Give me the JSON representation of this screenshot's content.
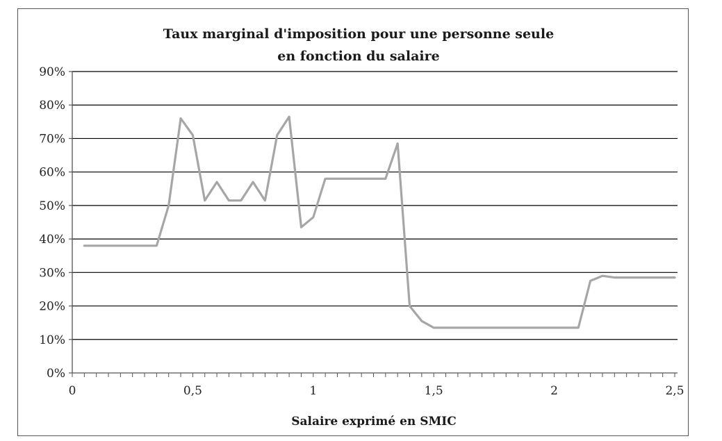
{
  "chart_data": {
    "type": "line",
    "title": "Taux marginal d'imposition pour une personne seule",
    "subtitle": "en fonction du salaire",
    "xlabel": "Salaire exprimé en SMIC",
    "ylabel": "",
    "xlim": [
      0,
      2.5
    ],
    "ylim": [
      0,
      90
    ],
    "x_ticks": [
      {
        "value": 0,
        "label": "0"
      },
      {
        "value": 0.5,
        "label": "0,5"
      },
      {
        "value": 1,
        "label": "1"
      },
      {
        "value": 1.5,
        "label": "1,5"
      },
      {
        "value": 2,
        "label": "2"
      },
      {
        "value": 2.5,
        "label": "2,5"
      }
    ],
    "x_minor_step": 0.05,
    "y_ticks": [
      {
        "value": 0,
        "label": "0%"
      },
      {
        "value": 10,
        "label": "10%"
      },
      {
        "value": 20,
        "label": "20%"
      },
      {
        "value": 30,
        "label": "30%"
      },
      {
        "value": 40,
        "label": "40%"
      },
      {
        "value": 50,
        "label": "50%"
      },
      {
        "value": 60,
        "label": "60%"
      },
      {
        "value": 70,
        "label": "70%"
      },
      {
        "value": 80,
        "label": "80%"
      },
      {
        "value": 90,
        "label": "90%"
      }
    ],
    "grid": true,
    "legend": "none",
    "colors": {
      "line": "#a6a6a6",
      "grid": "#000000",
      "axis": "#555555"
    },
    "series": [
      {
        "x": [
          0.05,
          0.1,
          0.15,
          0.2,
          0.25,
          0.3,
          0.35,
          0.4,
          0.45,
          0.5,
          0.55,
          0.6,
          0.65,
          0.7,
          0.75,
          0.8,
          0.85,
          0.9,
          0.95,
          1.0,
          1.05,
          1.1,
          1.15,
          1.2,
          1.25,
          1.3,
          1.35,
          1.4,
          1.45,
          1.5,
          1.55,
          1.6,
          1.65,
          1.7,
          1.75,
          1.8,
          1.85,
          1.9,
          1.95,
          2.0,
          2.05,
          2.1,
          2.15,
          2.2,
          2.25,
          2.3,
          2.35,
          2.4,
          2.45,
          2.5
        ],
        "values": [
          38,
          38,
          38,
          38,
          38,
          38,
          38,
          50,
          76,
          71,
          51.5,
          57,
          51.5,
          51.5,
          57,
          51.5,
          71,
          76.5,
          43.5,
          46.5,
          58,
          58,
          58,
          58,
          58,
          58,
          68.5,
          20,
          15.5,
          13.5,
          13.5,
          13.5,
          13.5,
          13.5,
          13.5,
          13.5,
          13.5,
          13.5,
          13.5,
          13.5,
          13.5,
          13.5,
          27.5,
          29,
          28.5,
          28.5,
          28.5,
          28.5,
          28.5,
          28.5
        ]
      }
    ]
  }
}
